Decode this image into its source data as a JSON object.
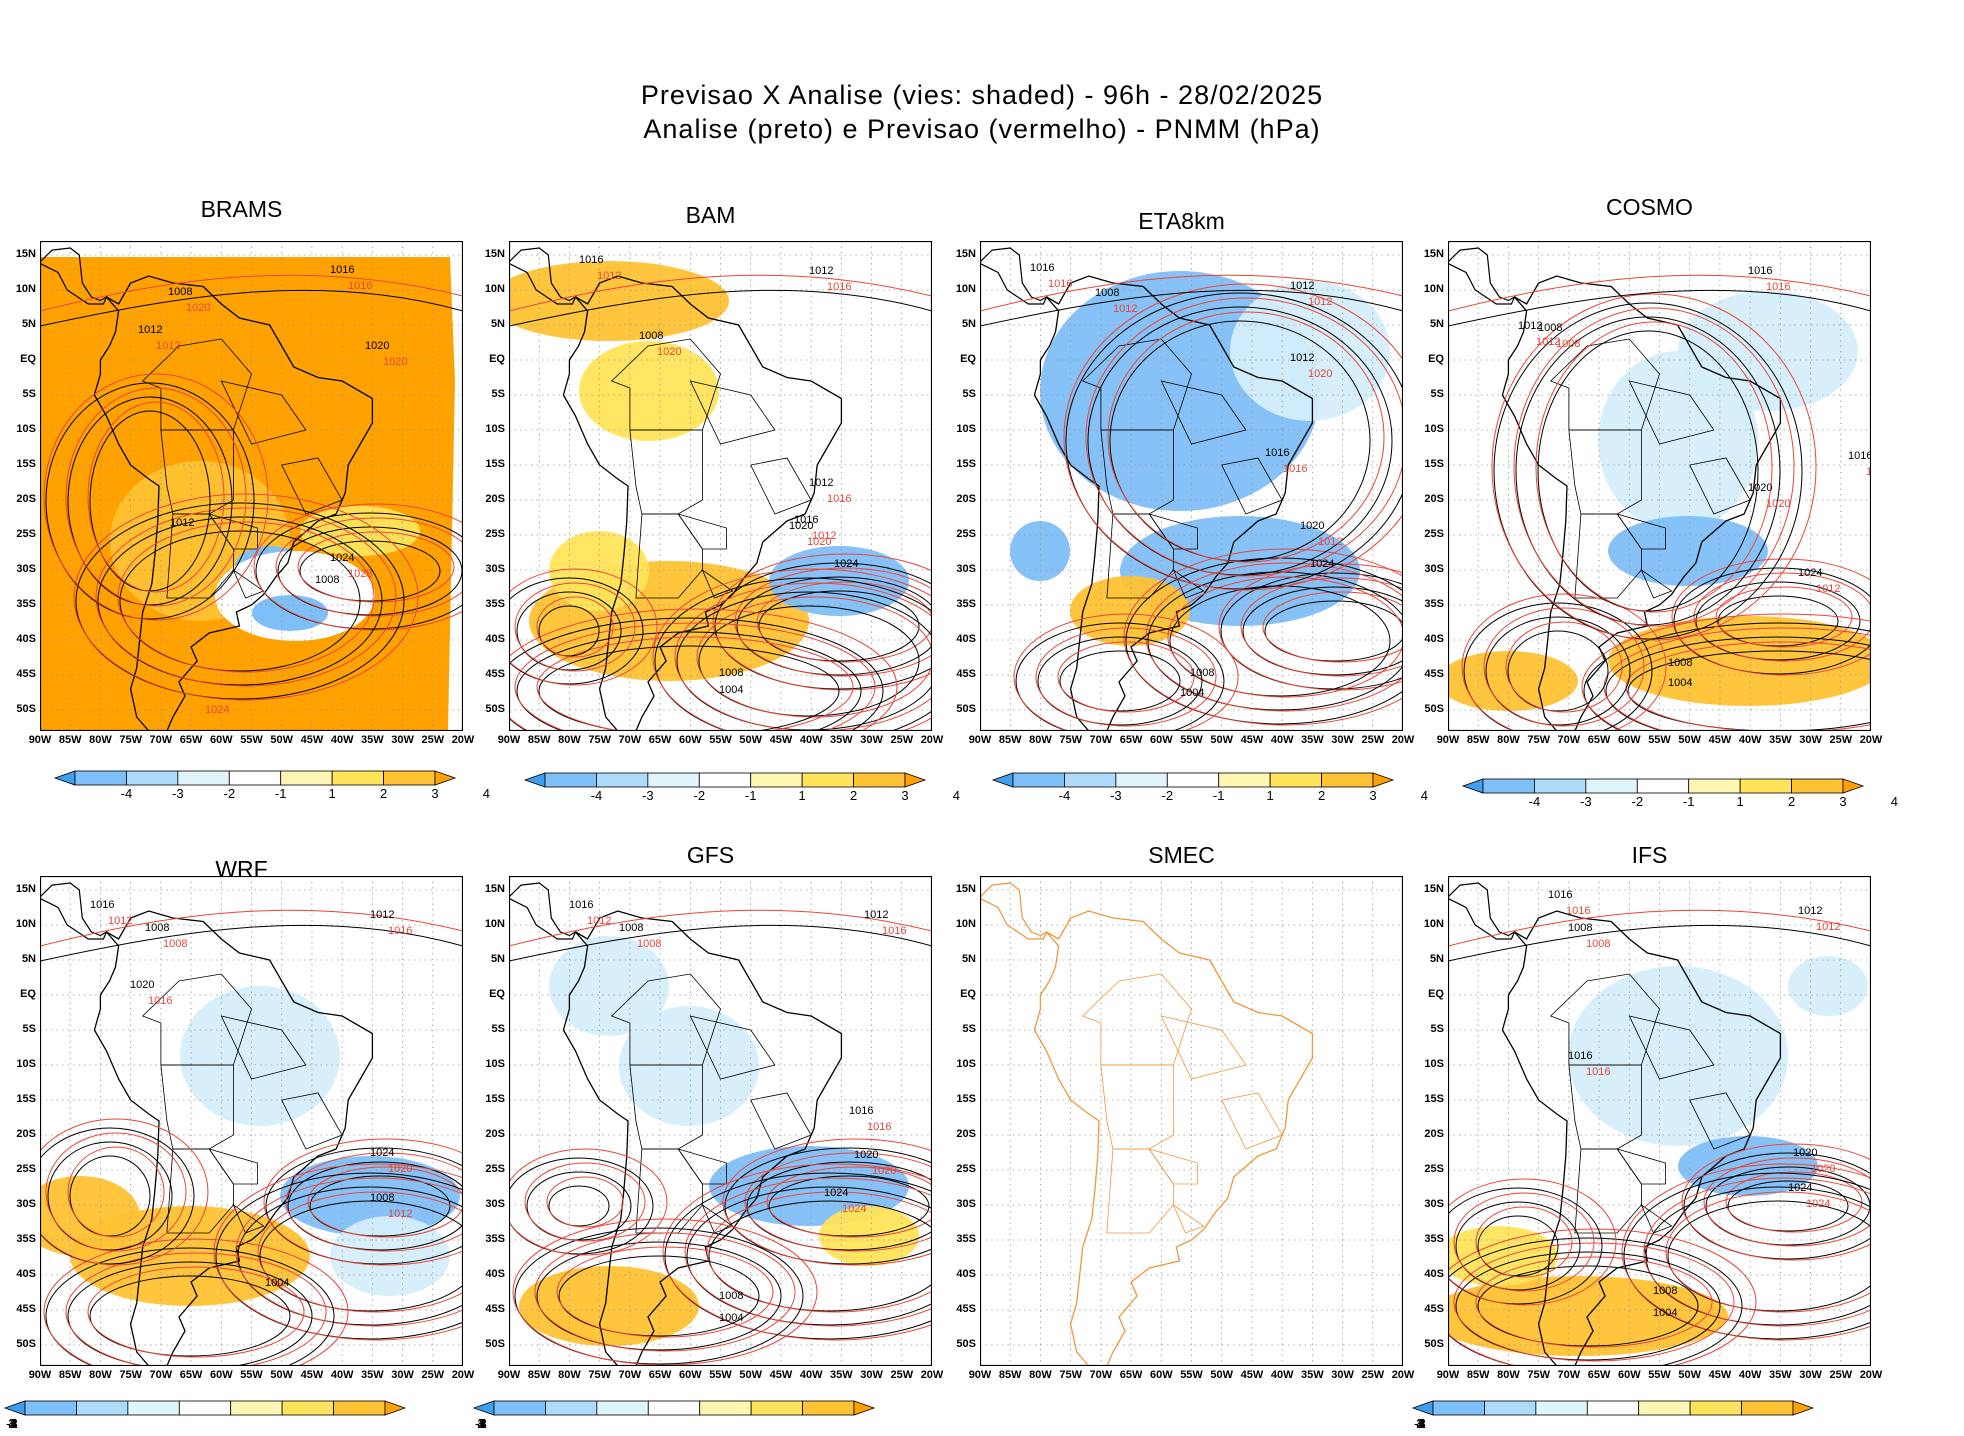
{
  "header": {
    "line1": "Previsao X Analise (vies: shaded) - 96h - 28/02/2025",
    "line2": "Analise (preto) e Previsao (vermelho) - PNMM (hPa)"
  },
  "axes": {
    "lat_labels": [
      "15N",
      "10N",
      "5N",
      "EQ",
      "5S",
      "10S",
      "15S",
      "20S",
      "25S",
      "30S",
      "35S",
      "40S",
      "45S",
      "50S"
    ],
    "lon_labels": [
      "90W",
      "85W",
      "80W",
      "75W",
      "70W",
      "65W",
      "60W",
      "55W",
      "50W",
      "45W",
      "40W",
      "35W",
      "30W",
      "25W",
      "20W"
    ]
  },
  "colorbar": {
    "labels": [
      "-4",
      "-3",
      "-2",
      "-1",
      "1",
      "2",
      "3",
      "4"
    ],
    "colors": [
      "#3f9fef",
      "#7fbff7",
      "#aedaf9",
      "#dff4fb",
      "#ffffff",
      "#fff6b4",
      "#ffe45a",
      "#ffc233",
      "#ffa200"
    ]
  },
  "colors": {
    "analysis": "#000000",
    "forecast": "#e8463a",
    "smec_coast": "#f0963c",
    "neg_bias": "#9fd0f5",
    "pos_bias": "#ffc233"
  },
  "panels": [
    {
      "name": "BRAMS",
      "labels_black": [
        "1016",
        "1008",
        "1012",
        "1020",
        "1024",
        "1008",
        "1012"
      ],
      "labels_red": [
        "1024",
        "1016",
        "1020",
        "1012",
        "1020",
        "1028"
      ]
    },
    {
      "name": "BAM",
      "labels_black": [
        "1012",
        "1016",
        "1008",
        "1012",
        "1016",
        "1020",
        "1024",
        "1008",
        "1004"
      ],
      "labels_red": [
        "1016",
        "1012",
        "1020",
        "1016",
        "1012",
        "1020"
      ]
    },
    {
      "name": "ETA8km",
      "labels_black": [
        "1012",
        "1016",
        "1008",
        "1012",
        "1016",
        "1020",
        "1024",
        "1008",
        "1004"
      ],
      "labels_red": [
        "1012",
        "1016",
        "1012",
        "1020",
        "1016",
        "1012"
      ]
    },
    {
      "name": "COSMO",
      "labels_black": [
        "1016",
        "1012",
        "1008",
        "1016",
        "1020",
        "1024",
        "1008",
        "1004"
      ],
      "labels_red": [
        "1016",
        "1012",
        "1008",
        "1016",
        "1020",
        "1012"
      ]
    },
    {
      "name": "WRF",
      "labels_black": [
        "1012",
        "1016",
        "1008",
        "1020",
        "1024",
        "1008",
        "1004"
      ],
      "labels_red": [
        "1016",
        "1012",
        "1008",
        "1016",
        "1020",
        "1012"
      ]
    },
    {
      "name": "GFS",
      "labels_black": [
        "1012",
        "1016",
        "1008",
        "1016",
        "1020",
        "1024",
        "1008",
        "1004"
      ],
      "labels_red": [
        "1016",
        "1012",
        "1008",
        "1016",
        "1020",
        "1024"
      ]
    },
    {
      "name": "SMEC",
      "labels_black": [],
      "labels_red": []
    },
    {
      "name": "IFS",
      "labels_black": [
        "1012",
        "1016",
        "1008",
        "1016",
        "1020",
        "1024",
        "1008",
        "1004"
      ],
      "labels_red": [
        "1012",
        "1016",
        "1008",
        "1016",
        "1020",
        "1024"
      ]
    }
  ]
}
